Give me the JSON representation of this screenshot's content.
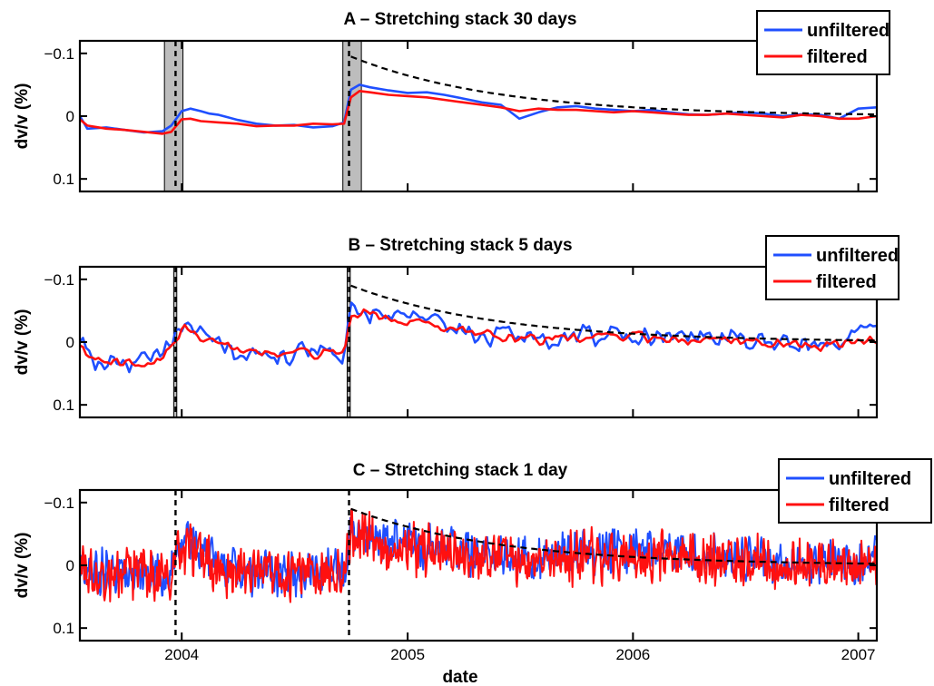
{
  "colors": {
    "unfiltered": "#1f4fff",
    "filtered": "#ff1010",
    "fit": "#000000",
    "shade": "#bdbdbd"
  },
  "chart_data": [
    {
      "type": "line",
      "title": "A – Stretching stack 30 days",
      "xlabel": "",
      "ylabel": "dv/v (%)",
      "xlim": [
        "2003-07-20",
        "2007-01-31"
      ],
      "ylim": [
        0.12,
        -0.12
      ],
      "y_reversed": true,
      "yticks": [
        -0.1,
        0,
        0.1
      ],
      "ytick_labels": [
        "−0.1",
        "0",
        "0.1"
      ],
      "xticks": [
        "2004-01-01",
        "2005-01-01",
        "2006-01-01",
        "2007-01-01"
      ],
      "xtick_labels": [
        "",
        "",
        "",
        ""
      ],
      "legend": {
        "placement": "top-right",
        "entries": [
          "unfiltered",
          "filtered"
        ]
      },
      "shaded_intervals": [
        [
          "2003-12-04",
          "2004-01-03"
        ],
        [
          "2004-09-18",
          "2004-10-18"
        ]
      ],
      "event_lines": [
        "2003-12-22",
        "2004-09-28"
      ],
      "series": [
        {
          "name": "unfiltered",
          "x": [
            "2003-07-20",
            "2003-08-01",
            "2003-09-01",
            "2003-10-01",
            "2003-11-01",
            "2003-12-01",
            "2003-12-15",
            "2004-01-01",
            "2004-01-15",
            "2004-02-01",
            "2004-02-15",
            "2004-03-01",
            "2004-04-01",
            "2004-05-01",
            "2004-06-01",
            "2004-07-01",
            "2004-08-01",
            "2004-09-01",
            "2004-09-20",
            "2004-10-01",
            "2004-10-15",
            "2004-11-01",
            "2004-12-01",
            "2005-01-01",
            "2005-02-01",
            "2005-03-01",
            "2005-04-01",
            "2005-05-01",
            "2005-06-01",
            "2005-06-15",
            "2005-07-01",
            "2005-08-01",
            "2005-09-01",
            "2005-10-01",
            "2005-11-01",
            "2005-12-01",
            "2006-01-01",
            "2006-02-01",
            "2006-03-01",
            "2006-04-01",
            "2006-05-01",
            "2006-06-01",
            "2006-07-01",
            "2006-08-01",
            "2006-09-01",
            "2006-10-01",
            "2006-11-01",
            "2006-12-01",
            "2007-01-01",
            "2007-01-31"
          ],
          "y": [
            0.0,
            0.02,
            0.018,
            0.022,
            0.026,
            0.024,
            0.015,
            -0.008,
            -0.012,
            -0.008,
            -0.004,
            -0.002,
            0.006,
            0.012,
            0.015,
            0.014,
            0.018,
            0.016,
            0.01,
            -0.042,
            -0.05,
            -0.046,
            -0.041,
            -0.037,
            -0.038,
            -0.034,
            -0.028,
            -0.022,
            -0.018,
            -0.008,
            0.004,
            -0.006,
            -0.014,
            -0.016,
            -0.012,
            -0.01,
            -0.008,
            -0.01,
            -0.006,
            -0.003,
            -0.002,
            -0.004,
            -0.006,
            -0.004,
            0.0,
            -0.003,
            -0.002,
            0.004,
            -0.012,
            -0.014
          ]
        },
        {
          "name": "filtered",
          "x": [
            "2003-07-20",
            "2003-08-01",
            "2003-09-01",
            "2003-10-01",
            "2003-11-01",
            "2003-12-01",
            "2003-12-15",
            "2004-01-01",
            "2004-01-15",
            "2004-02-01",
            "2004-03-01",
            "2004-04-01",
            "2004-05-01",
            "2004-06-01",
            "2004-07-01",
            "2004-08-01",
            "2004-09-01",
            "2004-09-20",
            "2004-10-01",
            "2004-10-15",
            "2004-11-01",
            "2004-12-01",
            "2005-01-01",
            "2005-02-01",
            "2005-03-01",
            "2005-04-01",
            "2005-05-01",
            "2005-06-01",
            "2005-07-01",
            "2005-08-01",
            "2005-09-01",
            "2005-10-01",
            "2005-11-01",
            "2005-12-01",
            "2006-01-01",
            "2006-02-01",
            "2006-03-01",
            "2006-04-01",
            "2006-05-01",
            "2006-06-01",
            "2006-07-01",
            "2006-08-01",
            "2006-09-01",
            "2006-10-01",
            "2006-11-01",
            "2006-12-01",
            "2007-01-01",
            "2007-01-31"
          ],
          "y": [
            0.005,
            0.015,
            0.02,
            0.022,
            0.025,
            0.028,
            0.025,
            0.005,
            0.004,
            0.008,
            0.01,
            0.012,
            0.016,
            0.015,
            0.015,
            0.012,
            0.013,
            0.012,
            -0.03,
            -0.04,
            -0.038,
            -0.034,
            -0.032,
            -0.03,
            -0.026,
            -0.022,
            -0.018,
            -0.014,
            -0.008,
            -0.012,
            -0.01,
            -0.01,
            -0.008,
            -0.006,
            -0.008,
            -0.006,
            -0.004,
            -0.002,
            -0.002,
            -0.004,
            -0.002,
            0.0,
            0.002,
            -0.002,
            0.0,
            0.004,
            0.004,
            0.0
          ]
        }
      ],
      "fit": {
        "start": "2004-10-01",
        "end": "2007-01-31",
        "y0": -0.095,
        "y_end": 0.0,
        "tau_days": 240
      }
    },
    {
      "type": "line",
      "title": "B – Stretching stack 5 days",
      "xlabel": "",
      "ylabel": "dv/v (%)",
      "xlim": [
        "2003-07-20",
        "2007-01-31"
      ],
      "ylim": [
        0.12,
        -0.12
      ],
      "y_reversed": true,
      "yticks": [
        -0.1,
        0,
        0.1
      ],
      "ytick_labels": [
        "−0.1",
        "0",
        "0.1"
      ],
      "xticks": [
        "2004-01-01",
        "2005-01-01",
        "2006-01-01",
        "2007-01-01"
      ],
      "xtick_labels": [
        "",
        "",
        "",
        ""
      ],
      "legend": {
        "placement": "top-right",
        "entries": [
          "unfiltered",
          "filtered"
        ]
      },
      "shaded_intervals": [
        [
          "2003-12-19",
          "2003-12-24"
        ],
        [
          "2004-09-25",
          "2004-09-30"
        ]
      ],
      "event_lines": [
        "2003-12-22",
        "2004-09-28"
      ],
      "series": [
        {
          "name": "unfiltered",
          "base_x": [
            "2003-07-20",
            "2003-08-15",
            "2003-09-15",
            "2003-10-15",
            "2003-11-15",
            "2003-12-15",
            "2004-01-05",
            "2004-02-01",
            "2004-03-01",
            "2004-04-01",
            "2004-05-01",
            "2004-06-01",
            "2004-07-01",
            "2004-08-01",
            "2004-09-20",
            "2004-10-01",
            "2004-10-20",
            "2004-12-01",
            "2005-02-01",
            "2005-04-01",
            "2005-06-01",
            "2005-08-01",
            "2005-10-01",
            "2005-12-01",
            "2006-02-01",
            "2006-04-01",
            "2006-06-01",
            "2006-08-01",
            "2006-10-01",
            "2006-12-01",
            "2007-01-31"
          ],
          "base_y": [
            0.01,
            0.03,
            0.03,
            0.035,
            0.03,
            0.01,
            -0.03,
            -0.005,
            0.0,
            0.015,
            0.02,
            0.022,
            0.02,
            0.02,
            0.015,
            -0.045,
            -0.05,
            -0.04,
            -0.03,
            -0.02,
            -0.01,
            -0.005,
            -0.01,
            -0.015,
            -0.012,
            -0.01,
            -0.005,
            -0.004,
            0.0,
            0.004,
            -0.012
          ],
          "noise_amp": 0.022,
          "step_days": 5
        },
        {
          "name": "filtered",
          "base_x": [
            "2003-07-20",
            "2003-08-15",
            "2003-09-15",
            "2003-10-15",
            "2003-11-15",
            "2003-12-15",
            "2004-01-05",
            "2004-02-01",
            "2004-03-01",
            "2004-04-01",
            "2004-05-01",
            "2004-06-01",
            "2004-07-01",
            "2004-08-01",
            "2004-09-20",
            "2004-10-01",
            "2004-10-20",
            "2004-12-01",
            "2005-02-01",
            "2005-04-01",
            "2005-06-01",
            "2005-08-01",
            "2005-10-01",
            "2005-12-01",
            "2006-02-01",
            "2006-04-01",
            "2006-06-01",
            "2006-08-01",
            "2006-10-01",
            "2006-12-01",
            "2007-01-31"
          ],
          "base_y": [
            0.01,
            0.028,
            0.03,
            0.033,
            0.03,
            0.012,
            -0.02,
            0.0,
            0.002,
            0.015,
            0.018,
            0.02,
            0.018,
            0.018,
            0.015,
            -0.04,
            -0.045,
            -0.036,
            -0.028,
            -0.018,
            -0.01,
            -0.005,
            -0.006,
            -0.01,
            -0.006,
            -0.005,
            -0.002,
            0.0,
            0.004,
            0.006,
            -0.004
          ],
          "noise_amp": 0.01,
          "step_days": 5
        }
      ],
      "fit": {
        "start": "2004-10-01",
        "end": "2007-01-31",
        "y0": -0.09,
        "y_end": 0.0,
        "tau_days": 240
      }
    },
    {
      "type": "line",
      "title": "C – Stretching stack 1 day",
      "xlabel": "date",
      "ylabel": "dv/v (%)",
      "xlim": [
        "2003-07-20",
        "2007-01-31"
      ],
      "ylim": [
        0.12,
        -0.12
      ],
      "y_reversed": true,
      "yticks": [
        -0.1,
        0,
        0.1
      ],
      "ytick_labels": [
        "−0.1",
        "0",
        "0.1"
      ],
      "xticks": [
        "2004-01-01",
        "2005-01-01",
        "2006-01-01",
        "2007-01-01"
      ],
      "xtick_labels": [
        "2004",
        "2005",
        "2006",
        "2007"
      ],
      "legend": {
        "placement": "top-right",
        "entries": [
          "unfiltered",
          "filtered"
        ]
      },
      "shaded_intervals": [],
      "event_lines": [
        "2003-12-22",
        "2004-09-28"
      ],
      "series": [
        {
          "name": "unfiltered",
          "base_x": [
            "2003-07-20",
            "2003-09-15",
            "2003-11-15",
            "2003-12-15",
            "2004-01-05",
            "2004-03-01",
            "2004-05-01",
            "2004-07-01",
            "2004-09-20",
            "2004-10-01",
            "2004-10-20",
            "2005-01-01",
            "2005-04-01",
            "2005-07-01",
            "2005-10-01",
            "2006-01-01",
            "2006-04-01",
            "2006-07-01",
            "2006-10-01",
            "2007-01-31"
          ],
          "base_y": [
            0.01,
            0.01,
            0.015,
            0.005,
            -0.04,
            0.0,
            0.012,
            0.015,
            0.01,
            -0.05,
            -0.05,
            -0.035,
            -0.02,
            -0.01,
            -0.02,
            -0.025,
            -0.02,
            -0.01,
            0.0,
            -0.01
          ],
          "noise_amp": 0.04,
          "step_days": 1
        },
        {
          "name": "filtered",
          "base_x": [
            "2003-07-20",
            "2003-09-15",
            "2003-11-15",
            "2003-12-15",
            "2004-01-05",
            "2004-03-01",
            "2004-05-01",
            "2004-07-01",
            "2004-09-20",
            "2004-10-01",
            "2004-10-20",
            "2005-01-01",
            "2005-04-01",
            "2005-07-01",
            "2005-10-01",
            "2006-01-01",
            "2006-04-01",
            "2006-07-01",
            "2006-10-01",
            "2007-01-31"
          ],
          "base_y": [
            0.01,
            0.012,
            0.015,
            0.008,
            -0.035,
            0.005,
            0.012,
            0.015,
            0.012,
            -0.045,
            -0.045,
            -0.03,
            -0.015,
            -0.008,
            -0.012,
            -0.015,
            -0.01,
            -0.005,
            0.002,
            -0.004
          ],
          "noise_amp": 0.05,
          "step_days": 1
        }
      ],
      "fit": {
        "start": "2004-10-01",
        "end": "2007-01-31",
        "y0": -0.09,
        "y_end": 0.0,
        "tau_days": 240
      }
    }
  ]
}
